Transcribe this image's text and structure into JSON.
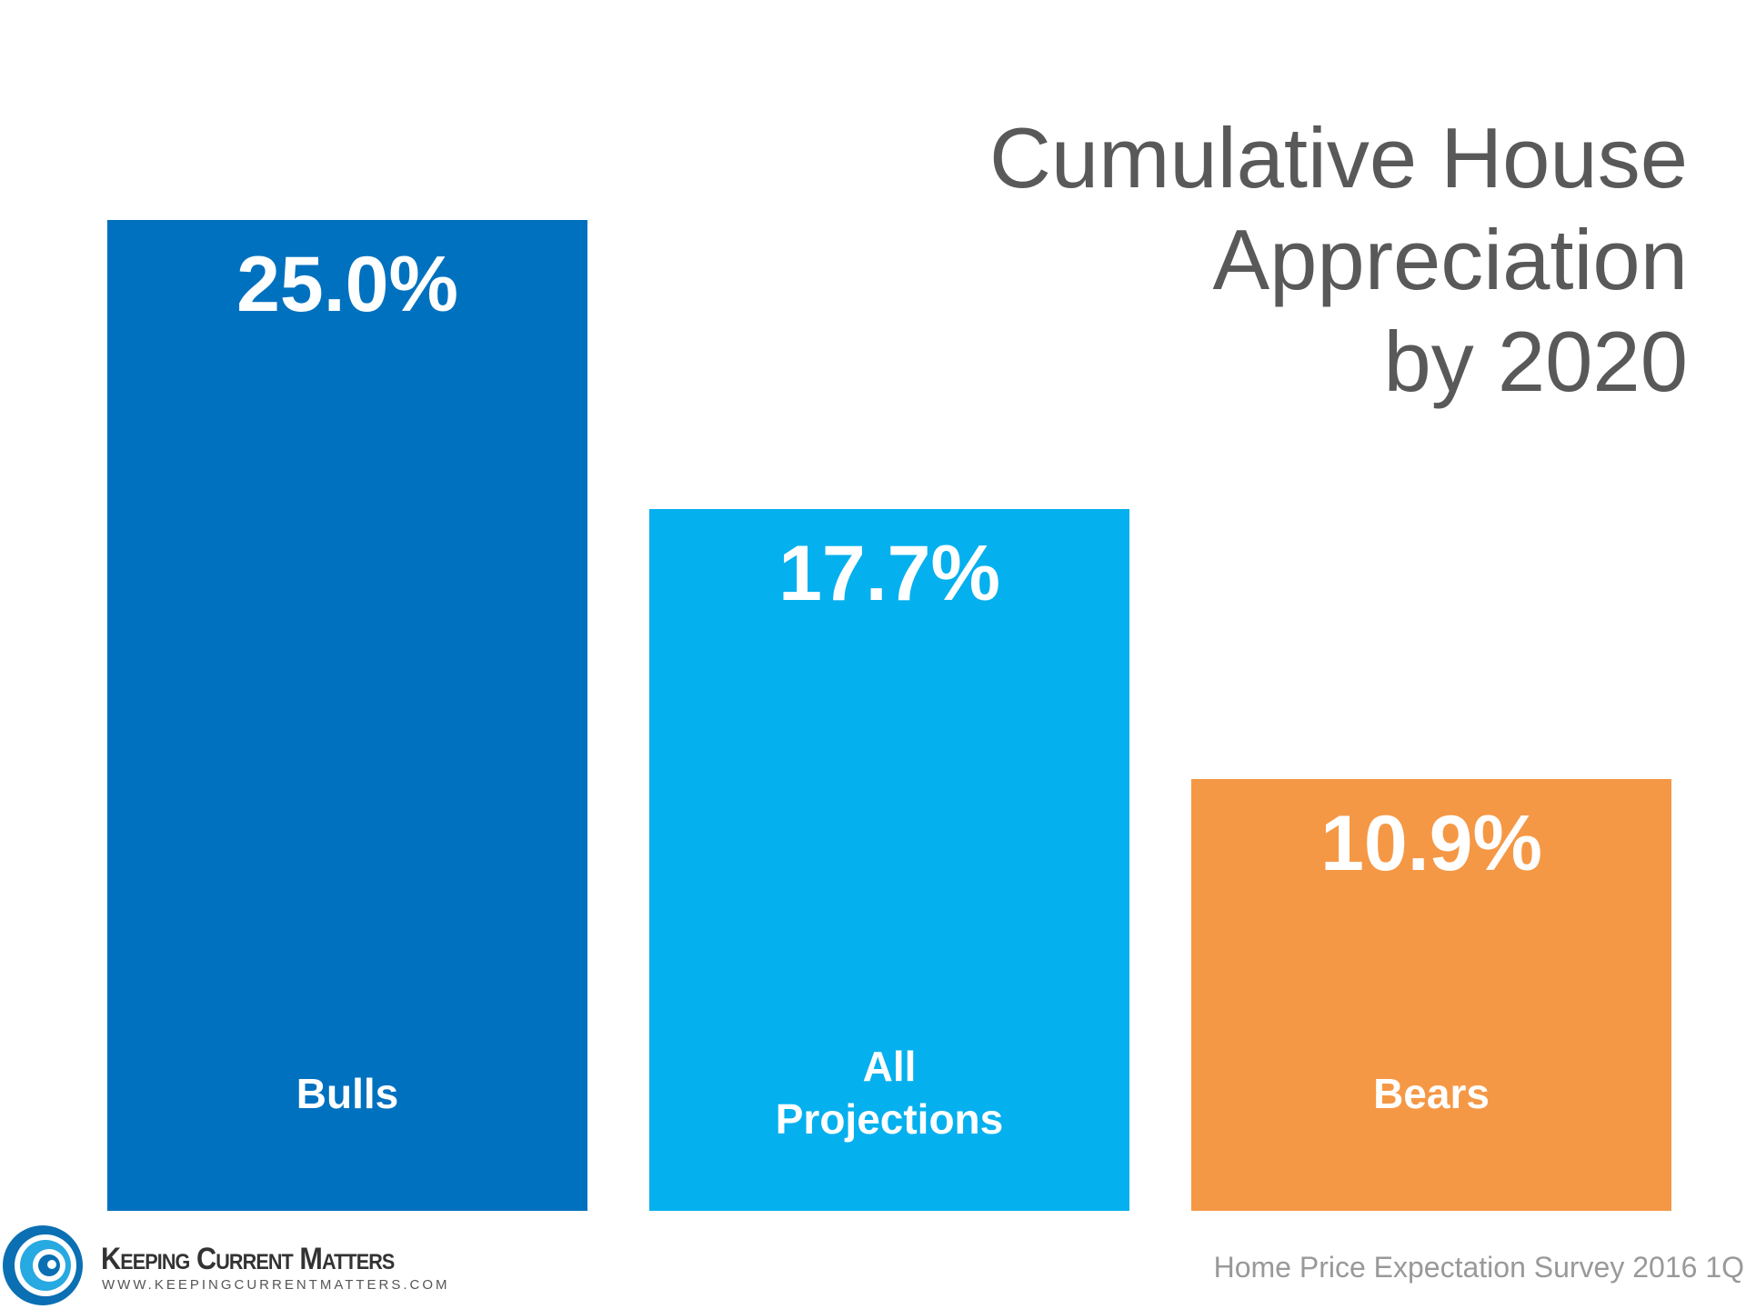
{
  "chart_data": {
    "type": "bar",
    "title": [
      "Cumulative House",
      "Appreciation",
      "by 2020"
    ],
    "categories": [
      [
        "Bulls"
      ],
      [
        "All",
        "Projections"
      ],
      [
        "Bears"
      ]
    ],
    "values": [
      25.0,
      17.7,
      10.9
    ],
    "value_labels": [
      "25.0%",
      "17.7%",
      "10.9%"
    ],
    "colors": [
      "#0071bf",
      "#05b0ee",
      "#f59846"
    ],
    "ylim": [
      0,
      25
    ],
    "grid": false,
    "axes_visible": false
  },
  "footer": {
    "brand": "Keeping Current Matters",
    "url": "WWW.KEEPINGCURRENTMATTERS.COM",
    "source": "Home Price Expectation Survey 2016 1Q"
  }
}
